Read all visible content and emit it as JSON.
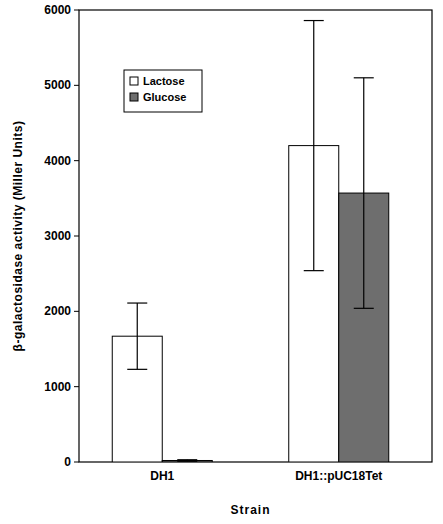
{
  "chart_data": {
    "type": "bar",
    "x_label": "Strain",
    "y_label": "β-galactosidase activity (Miller Units)",
    "categories": [
      "DH1",
      "DH1::pUC18Tet"
    ],
    "series": [
      {
        "name": "Lactose",
        "color": "#ffffff",
        "values": [
          1670,
          4200
        ],
        "errors": [
          440,
          1660
        ]
      },
      {
        "name": "Glucose",
        "color": "#6e6e6e",
        "values": [
          20,
          3570
        ],
        "errors": [
          10,
          1530
        ]
      }
    ],
    "ylim": [
      0,
      6000
    ],
    "yticks": [
      0,
      1000,
      2000,
      3000,
      4000,
      5000,
      6000
    ],
    "legend": "upper left",
    "grid": false
  }
}
